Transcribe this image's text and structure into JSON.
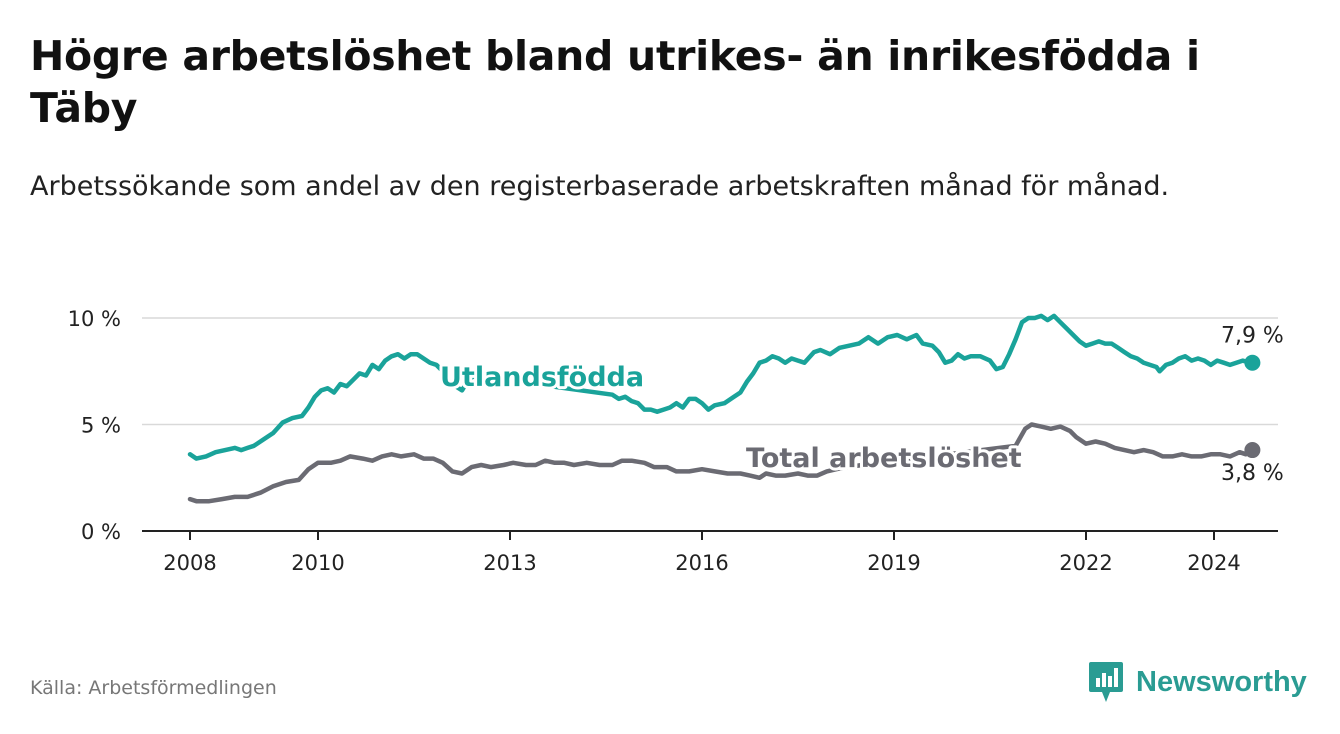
{
  "title": "Högre arbetslöshet bland utrikes- än inrikesfödda i Täby",
  "subtitle": "Arbetssökande som andel av den registerbaserade arbetskraften månad för månad.",
  "source": "Källa: Arbetsförmedlingen",
  "brand": "Newsworthy",
  "colors": {
    "utlandsfodda": "#1aa39a",
    "total": "#6b6b73",
    "grid": "#d9d9d9",
    "axis": "#222222",
    "brand": "#2a9c93"
  },
  "chart_data": {
    "type": "line",
    "title": "Högre arbetslöshet bland utrikes- än inrikesfödda i Täby",
    "xlabel": "",
    "ylabel": "",
    "xlim": [
      2007.25,
      2025.0
    ],
    "ylim": [
      0,
      10
    ],
    "y_ticks": [
      0,
      5,
      10
    ],
    "y_tick_labels": [
      "0 %",
      "5 %",
      "10 %"
    ],
    "x_ticks": [
      2008,
      2010,
      2013,
      2016,
      2019,
      2022,
      2024
    ],
    "x_tick_labels": [
      "2008",
      "2010",
      "2013",
      "2016",
      "2019",
      "2022",
      "2024"
    ],
    "grid": true,
    "series": [
      {
        "name": "Utlandsfödda",
        "label": "Utlandsfödda",
        "end_label": "7,9 %",
        "points": [
          [
            2008.0,
            3.6
          ],
          [
            2008.1,
            3.4
          ],
          [
            2008.25,
            3.5
          ],
          [
            2008.4,
            3.7
          ],
          [
            2008.55,
            3.8
          ],
          [
            2008.7,
            3.9
          ],
          [
            2008.8,
            3.8
          ],
          [
            2008.9,
            3.9
          ],
          [
            2009.0,
            4.0
          ],
          [
            2009.15,
            4.3
          ],
          [
            2009.3,
            4.6
          ],
          [
            2009.45,
            5.1
          ],
          [
            2009.6,
            5.3
          ],
          [
            2009.75,
            5.4
          ],
          [
            2009.85,
            5.8
          ],
          [
            2009.95,
            6.3
          ],
          [
            2010.05,
            6.6
          ],
          [
            2010.15,
            6.7
          ],
          [
            2010.25,
            6.5
          ],
          [
            2010.35,
            6.9
          ],
          [
            2010.45,
            6.8
          ],
          [
            2010.55,
            7.1
          ],
          [
            2010.65,
            7.4
          ],
          [
            2010.75,
            7.3
          ],
          [
            2010.85,
            7.8
          ],
          [
            2010.95,
            7.6
          ],
          [
            2011.05,
            8.0
          ],
          [
            2011.15,
            8.2
          ],
          [
            2011.25,
            8.3
          ],
          [
            2011.35,
            8.1
          ],
          [
            2011.45,
            8.3
          ],
          [
            2011.55,
            8.3
          ],
          [
            2011.65,
            8.1
          ],
          [
            2011.75,
            7.9
          ],
          [
            2011.85,
            7.8
          ],
          [
            2011.95,
            7.5
          ],
          [
            2012.05,
            7.0
          ],
          [
            2012.15,
            6.8
          ],
          [
            2012.25,
            6.6
          ],
          [
            2012.35,
            7.1
          ],
          [
            2012.5,
            7.4
          ],
          [
            2012.65,
            7.2
          ],
          [
            2014.6,
            6.4
          ],
          [
            2014.7,
            6.2
          ],
          [
            2014.8,
            6.3
          ],
          [
            2014.9,
            6.1
          ],
          [
            2015.0,
            6.0
          ],
          [
            2015.1,
            5.7
          ],
          [
            2015.2,
            5.7
          ],
          [
            2015.3,
            5.6
          ],
          [
            2015.4,
            5.7
          ],
          [
            2015.5,
            5.8
          ],
          [
            2015.6,
            6.0
          ],
          [
            2015.7,
            5.8
          ],
          [
            2015.8,
            6.2
          ],
          [
            2015.9,
            6.2
          ],
          [
            2016.0,
            6.0
          ],
          [
            2016.1,
            5.7
          ],
          [
            2016.2,
            5.9
          ],
          [
            2016.35,
            6.0
          ],
          [
            2016.5,
            6.3
          ],
          [
            2016.6,
            6.5
          ],
          [
            2016.7,
            7.0
          ],
          [
            2016.8,
            7.4
          ],
          [
            2016.9,
            7.9
          ],
          [
            2017.0,
            8.0
          ],
          [
            2017.1,
            8.2
          ],
          [
            2017.2,
            8.1
          ],
          [
            2017.3,
            7.9
          ],
          [
            2017.4,
            8.1
          ],
          [
            2017.5,
            8.0
          ],
          [
            2017.6,
            7.9
          ],
          [
            2017.75,
            8.4
          ],
          [
            2017.85,
            8.5
          ],
          [
            2018.0,
            8.3
          ],
          [
            2018.15,
            8.6
          ],
          [
            2018.3,
            8.7
          ],
          [
            2018.45,
            8.8
          ],
          [
            2018.6,
            9.1
          ],
          [
            2018.75,
            8.8
          ],
          [
            2018.9,
            9.1
          ],
          [
            2019.05,
            9.2
          ],
          [
            2019.2,
            9.0
          ],
          [
            2019.35,
            9.2
          ],
          [
            2019.45,
            8.8
          ],
          [
            2019.6,
            8.7
          ],
          [
            2019.7,
            8.4
          ],
          [
            2019.8,
            7.9
          ],
          [
            2019.9,
            8.0
          ],
          [
            2020.0,
            8.3
          ],
          [
            2020.1,
            8.1
          ],
          [
            2020.2,
            8.2
          ],
          [
            2020.35,
            8.2
          ],
          [
            2020.5,
            8.0
          ],
          [
            2020.6,
            7.6
          ],
          [
            2020.7,
            7.7
          ],
          [
            2020.8,
            8.3
          ],
          [
            2020.9,
            9.0
          ],
          [
            2021.0,
            9.8
          ],
          [
            2021.1,
            10.0
          ],
          [
            2021.2,
            10.0
          ],
          [
            2021.3,
            10.1
          ],
          [
            2021.4,
            9.9
          ],
          [
            2021.5,
            10.1
          ],
          [
            2021.6,
            9.8
          ],
          [
            2021.7,
            9.5
          ],
          [
            2021.8,
            9.2
          ],
          [
            2021.9,
            8.9
          ],
          [
            2022.0,
            8.7
          ],
          [
            2022.1,
            8.8
          ],
          [
            2022.2,
            8.9
          ],
          [
            2022.3,
            8.8
          ],
          [
            2022.4,
            8.8
          ],
          [
            2022.5,
            8.6
          ],
          [
            2022.6,
            8.4
          ],
          [
            2022.7,
            8.2
          ],
          [
            2022.8,
            8.1
          ],
          [
            2022.9,
            7.9
          ],
          [
            2023.0,
            7.8
          ],
          [
            2023.1,
            7.7
          ],
          [
            2023.15,
            7.5
          ],
          [
            2023.25,
            7.8
          ],
          [
            2023.35,
            7.9
          ],
          [
            2023.45,
            8.1
          ],
          [
            2023.55,
            8.2
          ],
          [
            2023.65,
            8.0
          ],
          [
            2023.75,
            8.1
          ],
          [
            2023.85,
            8.0
          ],
          [
            2023.95,
            7.8
          ],
          [
            2024.05,
            8.0
          ],
          [
            2024.15,
            7.9
          ],
          [
            2024.25,
            7.8
          ],
          [
            2024.35,
            7.9
          ],
          [
            2024.45,
            8.0
          ],
          [
            2024.55,
            7.9
          ],
          [
            2024.6,
            7.9
          ]
        ]
      },
      {
        "name": "Total arbetslöshet",
        "label": "Total arbetslöshet",
        "end_label": "3,8 %",
        "points": [
          [
            2008.0,
            1.5
          ],
          [
            2008.1,
            1.4
          ],
          [
            2008.3,
            1.4
          ],
          [
            2008.5,
            1.5
          ],
          [
            2008.7,
            1.6
          ],
          [
            2008.9,
            1.6
          ],
          [
            2009.1,
            1.8
          ],
          [
            2009.3,
            2.1
          ],
          [
            2009.5,
            2.3
          ],
          [
            2009.7,
            2.4
          ],
          [
            2009.85,
            2.9
          ],
          [
            2010.0,
            3.2
          ],
          [
            2010.2,
            3.2
          ],
          [
            2010.35,
            3.3
          ],
          [
            2010.5,
            3.5
          ],
          [
            2010.7,
            3.4
          ],
          [
            2010.85,
            3.3
          ],
          [
            2011.0,
            3.5
          ],
          [
            2011.15,
            3.6
          ],
          [
            2011.3,
            3.5
          ],
          [
            2011.5,
            3.6
          ],
          [
            2011.65,
            3.4
          ],
          [
            2011.8,
            3.4
          ],
          [
            2011.95,
            3.2
          ],
          [
            2012.1,
            2.8
          ],
          [
            2012.25,
            2.7
          ],
          [
            2012.4,
            3.0
          ],
          [
            2012.55,
            3.1
          ],
          [
            2012.7,
            3.0
          ],
          [
            2012.9,
            3.1
          ],
          [
            2013.05,
            3.2
          ],
          [
            2013.25,
            3.1
          ],
          [
            2013.4,
            3.1
          ],
          [
            2013.55,
            3.3
          ],
          [
            2013.7,
            3.2
          ],
          [
            2013.85,
            3.2
          ],
          [
            2014.0,
            3.1
          ],
          [
            2014.2,
            3.2
          ],
          [
            2014.4,
            3.1
          ],
          [
            2014.6,
            3.1
          ],
          [
            2014.75,
            3.3
          ],
          [
            2014.9,
            3.3
          ],
          [
            2015.1,
            3.2
          ],
          [
            2015.25,
            3.0
          ],
          [
            2015.45,
            3.0
          ],
          [
            2015.6,
            2.8
          ],
          [
            2015.8,
            2.8
          ],
          [
            2016.0,
            2.9
          ],
          [
            2016.2,
            2.8
          ],
          [
            2016.4,
            2.7
          ],
          [
            2016.6,
            2.7
          ],
          [
            2016.75,
            2.6
          ],
          [
            2016.9,
            2.5
          ],
          [
            2017.0,
            2.7
          ],
          [
            2017.15,
            2.6
          ],
          [
            2017.3,
            2.6
          ],
          [
            2017.5,
            2.7
          ],
          [
            2017.65,
            2.6
          ],
          [
            2017.8,
            2.6
          ],
          [
            2017.95,
            2.8
          ],
          [
            2018.1,
            2.9
          ],
          [
            2018.25,
            3.0
          ],
          [
            2020.9,
            4.0
          ],
          [
            2021.05,
            4.8
          ],
          [
            2021.15,
            5.0
          ],
          [
            2021.3,
            4.9
          ],
          [
            2021.45,
            4.8
          ],
          [
            2021.6,
            4.9
          ],
          [
            2021.75,
            4.7
          ],
          [
            2021.85,
            4.4
          ],
          [
            2022.0,
            4.1
          ],
          [
            2022.15,
            4.2
          ],
          [
            2022.3,
            4.1
          ],
          [
            2022.45,
            3.9
          ],
          [
            2022.6,
            3.8
          ],
          [
            2022.75,
            3.7
          ],
          [
            2022.9,
            3.8
          ],
          [
            2023.05,
            3.7
          ],
          [
            2023.2,
            3.5
          ],
          [
            2023.35,
            3.5
          ],
          [
            2023.5,
            3.6
          ],
          [
            2023.65,
            3.5
          ],
          [
            2023.8,
            3.5
          ],
          [
            2023.95,
            3.6
          ],
          [
            2024.1,
            3.6
          ],
          [
            2024.25,
            3.5
          ],
          [
            2024.4,
            3.7
          ],
          [
            2024.5,
            3.6
          ],
          [
            2024.6,
            3.8
          ]
        ]
      }
    ]
  }
}
